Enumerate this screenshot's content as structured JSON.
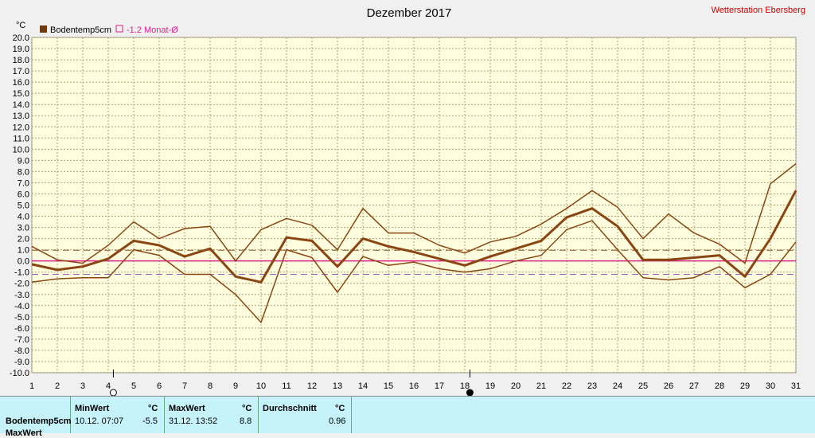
{
  "chart_data": {
    "type": "line",
    "title": "Dezember 2017",
    "station": "Wetterstation Ebersberg",
    "ylabel": "°C",
    "ylim": [
      -10,
      20
    ],
    "ystep": 1,
    "x": [
      1,
      2,
      3,
      4,
      5,
      6,
      7,
      8,
      9,
      10,
      11,
      12,
      13,
      14,
      15,
      16,
      17,
      18,
      19,
      20,
      21,
      22,
      23,
      24,
      25,
      26,
      27,
      28,
      29,
      30,
      31
    ],
    "legend": [
      {
        "label": "Bodentemp5cm",
        "color": "#6b3a10",
        "marker": "filled-square"
      },
      {
        "label": "-1.2 Monat-Ø",
        "color": "#e0208a",
        "marker": "outline-square"
      }
    ],
    "series": [
      {
        "name": "Bodentemp5cm max",
        "color": "#8b4513",
        "width": 1.5,
        "values": [
          1.3,
          0.1,
          -0.2,
          1.4,
          3.5,
          2.0,
          2.9,
          3.1,
          0.0,
          2.8,
          3.8,
          3.2,
          1.0,
          4.7,
          2.5,
          2.5,
          1.4,
          0.7,
          1.7,
          2.2,
          3.3,
          4.7,
          6.3,
          4.8,
          2.0,
          4.2,
          2.5,
          1.5,
          -0.2,
          6.9,
          8.7
        ]
      },
      {
        "name": "Bodentemp5cm",
        "color": "#8b4513",
        "width": 3,
        "values": [
          -0.3,
          -0.8,
          -0.5,
          0.2,
          1.8,
          1.4,
          0.4,
          1.1,
          -1.4,
          -1.9,
          2.1,
          1.8,
          -0.5,
          2.0,
          1.3,
          0.8,
          0.2,
          -0.4,
          0.4,
          1.1,
          1.8,
          3.9,
          4.7,
          3.1,
          0.1,
          0.1,
          0.3,
          0.5,
          -1.4,
          2.0,
          6.3
        ]
      },
      {
        "name": "Bodentemp5cm min",
        "color": "#8b4513",
        "width": 1.5,
        "values": [
          -1.9,
          -1.6,
          -1.5,
          -1.5,
          1.0,
          0.5,
          -1.2,
          -1.2,
          -3.0,
          -5.5,
          1.0,
          0.3,
          -2.8,
          0.4,
          -0.4,
          -0.1,
          -0.7,
          -1.0,
          -0.7,
          0.0,
          0.5,
          2.8,
          3.6,
          1.0,
          -1.5,
          -1.7,
          -1.5,
          -0.5,
          -2.4,
          -1.2,
          1.7
        ]
      }
    ],
    "reference_lines": [
      {
        "value": 0,
        "color": "#e0208a",
        "style": "solid"
      },
      {
        "value": 0.96,
        "color": "#8b5a2b",
        "style": "dashed"
      },
      {
        "value": -1.2,
        "color": "#9b5fc0",
        "style": "dashed"
      }
    ],
    "moon_markers": [
      {
        "day": 4,
        "phase": "full"
      },
      {
        "day": 18,
        "phase": "new"
      }
    ]
  },
  "stats": {
    "row_label": "Bodentemp5cm",
    "row2_label": "MaxWert",
    "min_header": "MinWert",
    "max_header": "MaxWert",
    "avg_header": "Durchschnitt",
    "unit": "°C",
    "min_time": "10.12.  07:07",
    "min_value": "-5.5",
    "max_time": "31.12.  13:52",
    "max_value": "8.8",
    "avg_value": "0.96"
  }
}
